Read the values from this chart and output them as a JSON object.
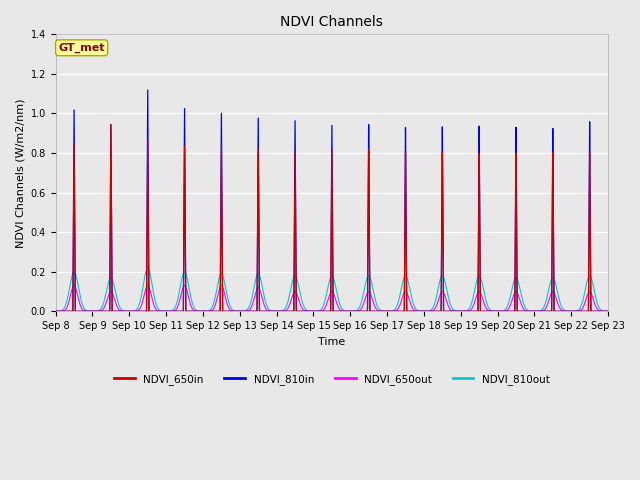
{
  "title": "NDVI Channels",
  "xlabel": "Time",
  "ylabel": "NDVI Channels (W/m2/nm)",
  "ylim": [
    0,
    1.4
  ],
  "background_color": "#e8e8e8",
  "plot_bg_color": "#e8e8e8",
  "annotation_text": "GT_met",
  "annotation_bg": "#ffff99",
  "annotation_fg": "#8b0000",
  "legend_entries": [
    "NDVI_650in",
    "NDVI_810in",
    "NDVI_650out",
    "NDVI_810out"
  ],
  "legend_colors": [
    "#cc0000",
    "#0000ee",
    "#ff00ff",
    "#00cccc"
  ],
  "num_days": 15,
  "peaks_810in": [
    1.02,
    0.95,
    1.13,
    1.04,
    1.02,
    1.0,
    0.99,
    0.97,
    0.97,
    0.95,
    0.95,
    0.95,
    0.94,
    0.93,
    0.96
  ],
  "peaks_650in": [
    0.85,
    0.95,
    0.88,
    0.85,
    0.85,
    0.84,
    0.83,
    0.84,
    0.84,
    0.83,
    0.82,
    0.81,
    0.81,
    0.81,
    0.81
  ],
  "peaks_650out": [
    0.13,
    0.1,
    0.13,
    0.13,
    0.13,
    0.12,
    0.1,
    0.1,
    0.1,
    0.1,
    0.1,
    0.1,
    0.1,
    0.1,
    0.1
  ],
  "peaks_810out": [
    0.2,
    0.17,
    0.22,
    0.2,
    0.19,
    0.19,
    0.18,
    0.18,
    0.18,
    0.18,
    0.18,
    0.18,
    0.17,
    0.17,
    0.18
  ],
  "grid_color": "#ffffff",
  "tick_label_dates": [
    "Sep 8",
    "Sep 9",
    "Sep 10",
    "Sep 11",
    "Sep 12",
    "Sep 13",
    "Sep 14",
    "Sep 15",
    "Sep 16",
    "Sep 17",
    "Sep 18",
    "Sep 19",
    "Sep 20",
    "Sep 21",
    "Sep 22",
    "Sep 23"
  ],
  "yticks": [
    0.0,
    0.2,
    0.4,
    0.6,
    0.8,
    1.0,
    1.2,
    1.4
  ],
  "title_fontsize": 10,
  "label_fontsize": 8,
  "tick_fontsize": 7
}
